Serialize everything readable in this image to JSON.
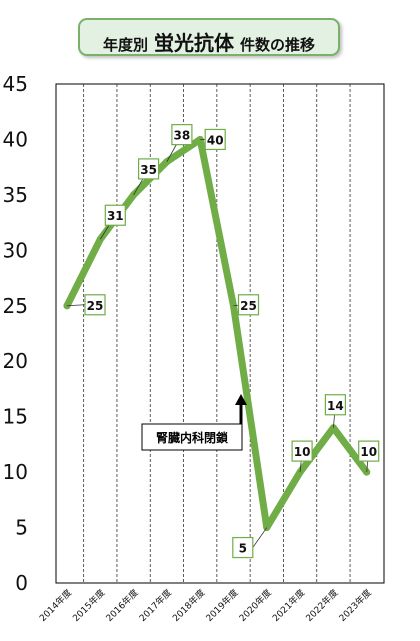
{
  "title": {
    "part1": "年度別",
    "part2": "蛍光抗体",
    "part3": "件数の推移"
  },
  "colors": {
    "line": "#70ad47",
    "title_bg": "#e3f1e3",
    "title_border": "#7ab06a",
    "label_border": "#70ad47",
    "axis": "#000000"
  },
  "chart_data": {
    "type": "line",
    "title": "年度別 蛍光抗体 件数の推移",
    "categories": [
      "2014年度",
      "2015年度",
      "2016年度",
      "2017年度",
      "2018年度",
      "2019年度",
      "2020年度",
      "2021年度",
      "2022年度",
      "2023年度"
    ],
    "series": [
      {
        "values": [
          25,
          31,
          35,
          38,
          40,
          25,
          5,
          10,
          14,
          10
        ]
      }
    ],
    "y_ticks": [
      0,
      5,
      10,
      15,
      20,
      25,
      30,
      35,
      40,
      45
    ],
    "ylim": [
      0,
      45
    ],
    "xlabel": "",
    "ylabel": "",
    "grid": "vertical dashed",
    "annotation": {
      "text": "腎臓内科閉鎖",
      "arrow_at": "2019年度-2020年度"
    }
  }
}
